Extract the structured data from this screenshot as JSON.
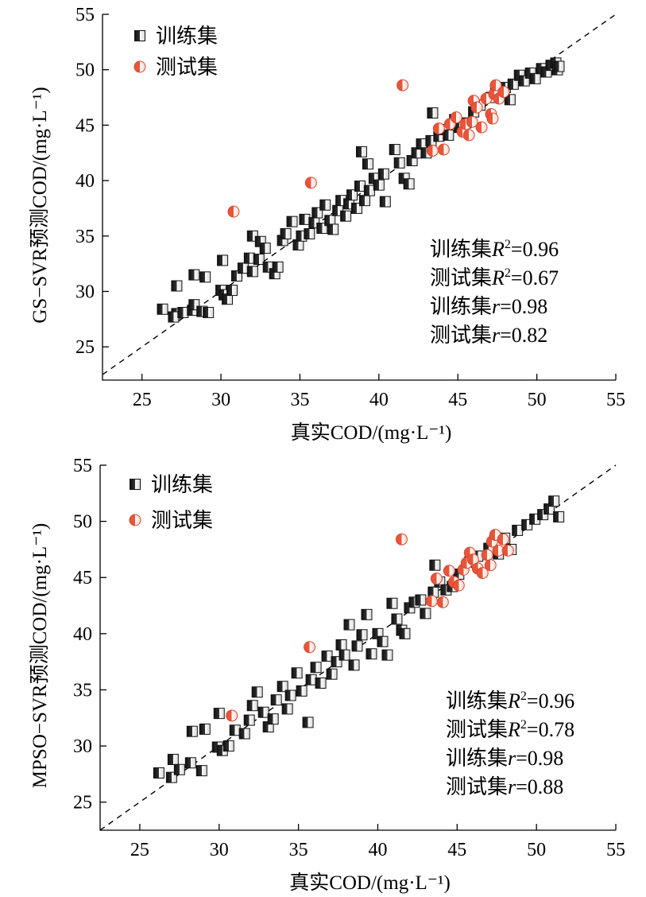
{
  "chart_data": [
    {
      "type": "scatter",
      "xlabel": "真实COD/(mg·L⁻¹)",
      "ylabel": "GS−SVR预测COD/(mg·L⁻¹)",
      "xlim": [
        22.5,
        55
      ],
      "ylim": [
        22,
        55
      ],
      "x_ticks": [
        "25",
        "30",
        "35",
        "40",
        "45",
        "50",
        "55"
      ],
      "y_ticks": [
        "25",
        "30",
        "35",
        "40",
        "45",
        "50",
        "55"
      ],
      "legend": {
        "position": "top-left",
        "entries": [
          "训练集",
          "测试集"
        ]
      },
      "stats": [
        "训练集R²=0.96",
        "测试集R²=0.67",
        "训练集r=0.98",
        "测试集r=0.82"
      ],
      "series": [
        {
          "name": "训练集",
          "marker": "square-half",
          "color": "#1a1a1a",
          "points": [
            [
              26.3,
              28.4
            ],
            [
              27.2,
              28.0
            ],
            [
              27.0,
              27.7
            ],
            [
              27.6,
              28.1
            ],
            [
              28.2,
              28.3
            ],
            [
              28.3,
              28.8
            ],
            [
              28.8,
              28.2
            ],
            [
              29.2,
              28.1
            ],
            [
              27.2,
              30.5
            ],
            [
              28.3,
              31.5
            ],
            [
              29.0,
              31.3
            ],
            [
              30.0,
              30.1
            ],
            [
              30.2,
              29.7
            ],
            [
              30.4,
              29.3
            ],
            [
              30.7,
              30.1
            ],
            [
              31.0,
              31.4
            ],
            [
              30.1,
              32.8
            ],
            [
              31.4,
              32.1
            ],
            [
              31.8,
              33.0
            ],
            [
              32.0,
              31.8
            ],
            [
              32.4,
              32.9
            ],
            [
              32.0,
              35.0
            ],
            [
              32.5,
              34.5
            ],
            [
              32.8,
              33.9
            ],
            [
              33.0,
              32.2
            ],
            [
              33.4,
              31.6
            ],
            [
              33.6,
              32.2
            ],
            [
              33.9,
              34.6
            ],
            [
              34.1,
              35.2
            ],
            [
              34.5,
              36.3
            ],
            [
              34.9,
              34.2
            ],
            [
              35.1,
              35.0
            ],
            [
              35.3,
              36.5
            ],
            [
              35.6,
              35.2
            ],
            [
              35.9,
              36.2
            ],
            [
              36.1,
              37.1
            ],
            [
              36.4,
              35.7
            ],
            [
              36.6,
              37.8
            ],
            [
              36.9,
              36.4
            ],
            [
              37.1,
              35.6
            ],
            [
              37.4,
              37.3
            ],
            [
              37.6,
              38.2
            ],
            [
              37.9,
              36.8
            ],
            [
              38.1,
              37.9
            ],
            [
              38.3,
              38.7
            ],
            [
              38.6,
              37.5
            ],
            [
              38.8,
              39.5
            ],
            [
              39.1,
              38.2
            ],
            [
              39.4,
              39.1
            ],
            [
              39.7,
              40.2
            ],
            [
              40.0,
              39.6
            ],
            [
              40.3,
              40.6
            ],
            [
              38.9,
              42.6
            ],
            [
              39.3,
              41.5
            ],
            [
              40.4,
              38.1
            ],
            [
              41.0,
              42.8
            ],
            [
              41.3,
              41.6
            ],
            [
              41.6,
              40.2
            ],
            [
              41.9,
              39.7
            ],
            [
              42.1,
              41.8
            ],
            [
              42.4,
              42.5
            ],
            [
              42.7,
              43.3
            ],
            [
              43.0,
              42.5
            ],
            [
              43.3,
              43.6
            ],
            [
              43.4,
              46.1
            ],
            [
              43.8,
              44.0
            ],
            [
              44.1,
              44.6
            ],
            [
              44.4,
              44.1
            ],
            [
              44.8,
              45.5
            ],
            [
              45.1,
              44.8
            ],
            [
              45.5,
              45.2
            ],
            [
              46.0,
              46.2
            ],
            [
              46.4,
              46.8
            ],
            [
              47.1,
              47.5
            ],
            [
              47.4,
              48.3
            ],
            [
              47.7,
              47.9
            ],
            [
              48.0,
              48.4
            ],
            [
              48.3,
              47.3
            ],
            [
              48.5,
              48.7
            ],
            [
              48.9,
              49.5
            ],
            [
              49.2,
              49.0
            ],
            [
              49.6,
              49.7
            ],
            [
              49.9,
              49.2
            ],
            [
              50.3,
              50.1
            ],
            [
              50.6,
              49.8
            ],
            [
              50.9,
              50.4
            ],
            [
              51.2,
              50.6
            ],
            [
              51.3,
              50.0
            ],
            [
              51.4,
              50.3
            ]
          ]
        },
        {
          "name": "测试集",
          "marker": "circle-half",
          "color": "#e8553a",
          "points": [
            [
              30.8,
              37.2
            ],
            [
              35.7,
              39.8
            ],
            [
              41.5,
              48.6
            ],
            [
              43.4,
              42.7
            ],
            [
              43.8,
              44.7
            ],
            [
              44.1,
              42.8
            ],
            [
              44.5,
              45.1
            ],
            [
              44.9,
              45.7
            ],
            [
              45.3,
              44.4
            ],
            [
              45.5,
              45.1
            ],
            [
              45.7,
              44.1
            ],
            [
              45.9,
              45.3
            ],
            [
              46.0,
              47.2
            ],
            [
              46.2,
              46.6
            ],
            [
              46.5,
              44.8
            ],
            [
              46.8,
              47.4
            ],
            [
              47.1,
              46.0
            ],
            [
              47.2,
              45.6
            ],
            [
              47.3,
              47.8
            ],
            [
              47.4,
              48.6
            ],
            [
              47.6,
              47.4
            ],
            [
              47.9,
              48.0
            ]
          ]
        }
      ]
    },
    {
      "type": "scatter",
      "xlabel": "真实COD/(mg·L⁻¹)",
      "ylabel": "MPSO−SVR预测COD/(mg·L⁻¹)",
      "xlim": [
        22.5,
        55
      ],
      "ylim": [
        22.5,
        55
      ],
      "x_ticks": [
        "25",
        "30",
        "35",
        "40",
        "45",
        "50",
        "55"
      ],
      "y_ticks": [
        "25",
        "30",
        "35",
        "40",
        "45",
        "50",
        "55"
      ],
      "legend": {
        "position": "top-left",
        "entries": [
          "训练集",
          "测试集"
        ]
      },
      "stats": [
        "训练集R²=0.96",
        "测试集R²=0.78",
        "训练集r=0.98",
        "测试集r=0.88"
      ],
      "series": [
        {
          "name": "训练集",
          "marker": "square-half",
          "color": "#1a1a1a",
          "points": [
            [
              26.2,
              27.6
            ],
            [
              27.0,
              27.2
            ],
            [
              27.1,
              28.8
            ],
            [
              27.5,
              27.9
            ],
            [
              28.2,
              28.5
            ],
            [
              28.9,
              27.8
            ],
            [
              28.3,
              31.3
            ],
            [
              29.1,
              31.5
            ],
            [
              29.9,
              29.9
            ],
            [
              30.2,
              29.6
            ],
            [
              30.6,
              30.0
            ],
            [
              30.0,
              32.9
            ],
            [
              31.0,
              31.4
            ],
            [
              31.6,
              31.1
            ],
            [
              31.9,
              32.3
            ],
            [
              32.1,
              33.6
            ],
            [
              32.4,
              34.8
            ],
            [
              32.8,
              33.0
            ],
            [
              33.1,
              31.7
            ],
            [
              33.4,
              32.4
            ],
            [
              33.6,
              34.1
            ],
            [
              34.0,
              35.3
            ],
            [
              34.3,
              33.3
            ],
            [
              34.5,
              34.5
            ],
            [
              34.9,
              36.5
            ],
            [
              35.2,
              34.9
            ],
            [
              35.6,
              32.1
            ],
            [
              35.8,
              35.9
            ],
            [
              36.1,
              37.0
            ],
            [
              36.4,
              35.6
            ],
            [
              36.8,
              38.0
            ],
            [
              37.1,
              36.4
            ],
            [
              37.4,
              37.5
            ],
            [
              37.7,
              39.0
            ],
            [
              37.9,
              38.1
            ],
            [
              38.2,
              40.8
            ],
            [
              38.5,
              37.2
            ],
            [
              38.7,
              38.9
            ],
            [
              39.0,
              39.9
            ],
            [
              39.3,
              41.7
            ],
            [
              39.6,
              38.2
            ],
            [
              40.0,
              40.0
            ],
            [
              40.3,
              39.3
            ],
            [
              40.6,
              38.1
            ],
            [
              40.9,
              42.7
            ],
            [
              41.2,
              41.3
            ],
            [
              41.5,
              40.3
            ],
            [
              41.7,
              40.0
            ],
            [
              42.0,
              42.3
            ],
            [
              42.3,
              42.8
            ],
            [
              42.7,
              43.0
            ],
            [
              43.0,
              41.8
            ],
            [
              43.5,
              43.7
            ],
            [
              43.6,
              46.1
            ],
            [
              43.9,
              44.6
            ],
            [
              44.3,
              43.9
            ],
            [
              44.7,
              44.2
            ],
            [
              45.1,
              45.3
            ],
            [
              45.8,
              46.4
            ],
            [
              46.3,
              46.9
            ],
            [
              47.0,
              47.6
            ],
            [
              47.6,
              47.1
            ],
            [
              48.0,
              48.5
            ],
            [
              48.4,
              47.5
            ],
            [
              48.8,
              49.2
            ],
            [
              49.4,
              49.7
            ],
            [
              49.9,
              50.2
            ],
            [
              50.4,
              50.6
            ],
            [
              50.8,
              51.1
            ],
            [
              51.1,
              51.8
            ],
            [
              51.4,
              50.4
            ]
          ]
        },
        {
          "name": "测试集",
          "marker": "circle-half",
          "color": "#e8553a",
          "points": [
            [
              30.8,
              32.7
            ],
            [
              35.7,
              38.8
            ],
            [
              41.5,
              48.4
            ],
            [
              43.4,
              42.9
            ],
            [
              43.7,
              44.9
            ],
            [
              44.1,
              42.8
            ],
            [
              44.5,
              45.6
            ],
            [
              44.8,
              44.6
            ],
            [
              45.1,
              44.3
            ],
            [
              45.4,
              45.7
            ],
            [
              45.6,
              46.3
            ],
            [
              45.8,
              47.2
            ],
            [
              46.0,
              46.6
            ],
            [
              46.3,
              45.8
            ],
            [
              46.6,
              45.4
            ],
            [
              46.9,
              47.0
            ],
            [
              47.1,
              46.1
            ],
            [
              47.2,
              48.2
            ],
            [
              47.4,
              48.8
            ],
            [
              47.6,
              47.4
            ],
            [
              47.9,
              48.4
            ],
            [
              48.2,
              47.4
            ]
          ]
        }
      ]
    }
  ]
}
